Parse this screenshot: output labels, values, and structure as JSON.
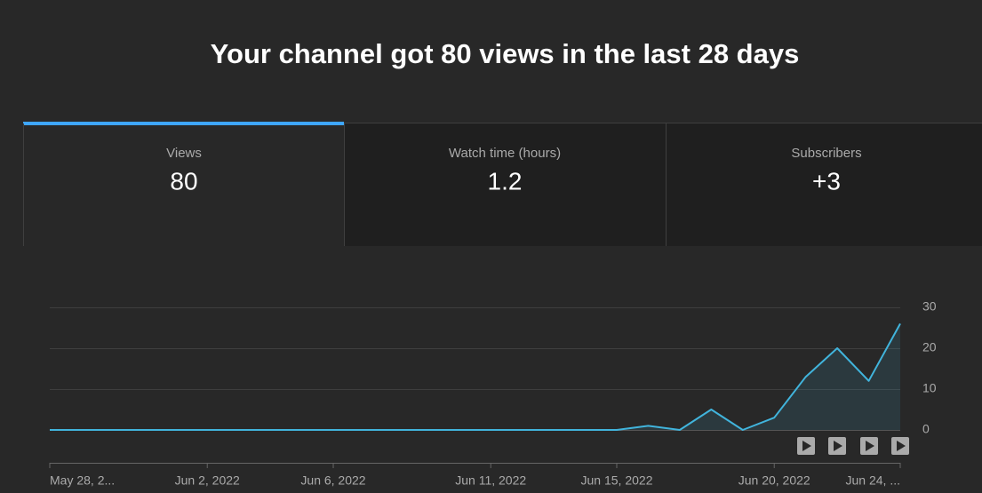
{
  "header": {
    "title": "Your channel got 80 views in the last 28 days"
  },
  "tabs": [
    {
      "label": "Views",
      "value": "80"
    },
    {
      "label": "Watch time (hours)",
      "value": "1.2"
    },
    {
      "label": "Subscribers",
      "value": "+3"
    }
  ],
  "chart_data": {
    "type": "line",
    "categories": [
      "May 28, 2...",
      null,
      null,
      null,
      null,
      "Jun 2, 2022",
      null,
      null,
      null,
      "Jun 6, 2022",
      null,
      null,
      null,
      null,
      "Jun 11, 2022",
      null,
      null,
      null,
      "Jun 15, 2022",
      null,
      null,
      null,
      null,
      "Jun 20, 2022",
      null,
      null,
      null,
      "Jun 24, ..."
    ],
    "values": [
      0,
      0,
      0,
      0,
      0,
      0,
      0,
      0,
      0,
      0,
      0,
      0,
      0,
      0,
      0,
      0,
      0,
      0,
      0,
      1,
      0,
      5,
      0,
      3,
      13,
      20,
      12,
      26
    ],
    "color": "#41b4dc",
    "ylim": [
      0,
      30
    ],
    "yticks": [
      0,
      10,
      20,
      30
    ],
    "grid": true
  }
}
